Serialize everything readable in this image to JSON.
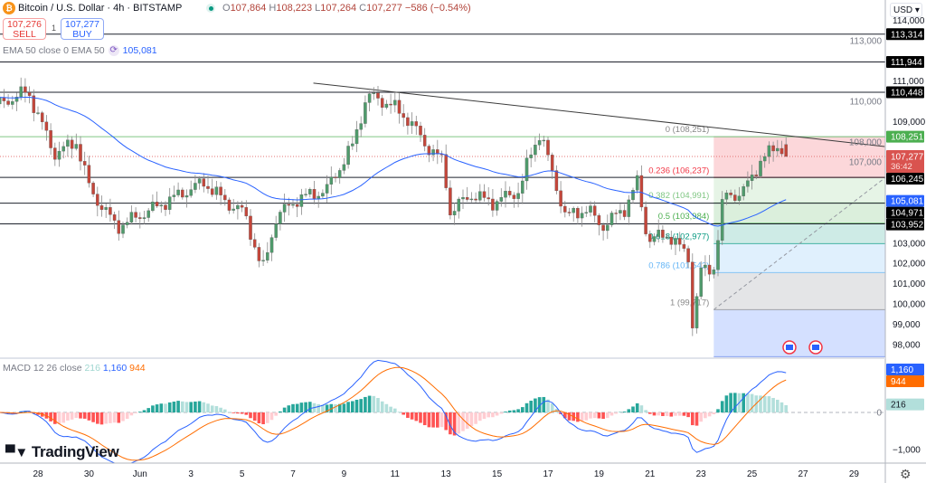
{
  "header": {
    "symbol_title": "Bitcoin / U.S. Dollar · 4h · BITSTAMP",
    "logo_glyph": "₿",
    "ohlc": {
      "o_label": "O",
      "o": "107,864",
      "h_label": "H",
      "h": "108,223",
      "l_label": "L",
      "l": "107,264",
      "c_label": "C",
      "c": "107,277",
      "change": "−586 (−0.54%)"
    },
    "sell": {
      "price": "107,276",
      "label": "SELL"
    },
    "spread": "1",
    "buy": {
      "price": "107,277",
      "label": "BUY"
    },
    "ema_legend": {
      "label": "EMA 50 close 0 EMA 50",
      "value": "105,081"
    },
    "macd_legend": {
      "label": "MACD 12 26 close",
      "hist": "216",
      "macd": "1,160",
      "signal": "944"
    },
    "currency": "USD ▾",
    "watermark": "TradingView"
  },
  "colors": {
    "up": "#4f9b6c",
    "down": "#c4463a",
    "ema": "#2962ff",
    "macd": "#2962ff",
    "signal": "#ff6d00",
    "hist_up": "#26a69a",
    "hist_up_light": "#b2dfdb",
    "hist_dn": "#ff5252",
    "hist_dn_light": "#ffcdd2"
  },
  "chart_data": {
    "type": "candlestick",
    "title": "Bitcoin / U.S. Dollar · 4h · BITSTAMP",
    "interval_hours": 4,
    "x_unit": "days since May 28",
    "start_day": -1.5,
    "end_day": 26.17,
    "price_path": [
      [
        -1.5,
        109870
      ],
      [
        -0.4,
        110500
      ],
      [
        0.65,
        107400
      ],
      [
        1.5,
        108000
      ],
      [
        2.05,
        105600
      ],
      [
        3.1,
        103800
      ],
      [
        4.2,
        104500
      ],
      [
        5.25,
        105200
      ],
      [
        6.5,
        106000
      ],
      [
        7.4,
        105000
      ],
      [
        8.1,
        104500
      ],
      [
        8.8,
        101600
      ],
      [
        9.35,
        104300
      ],
      [
        10.2,
        105200
      ],
      [
        11.3,
        105600
      ],
      [
        12.35,
        107850
      ],
      [
        12.9,
        110300
      ],
      [
        13.8,
        109870
      ],
      [
        14.6,
        109000
      ],
      [
        15.2,
        107850
      ],
      [
        15.9,
        107000
      ],
      [
        16.15,
        104500
      ],
      [
        16.95,
        105400
      ],
      [
        17.85,
        105000
      ],
      [
        18.9,
        105600
      ],
      [
        19.25,
        107200
      ],
      [
        19.7,
        108500
      ],
      [
        20.15,
        106500
      ],
      [
        20.7,
        104300
      ],
      [
        21.55,
        104700
      ],
      [
        22.1,
        103800
      ],
      [
        23.0,
        104700
      ],
      [
        23.5,
        106000
      ],
      [
        23.9,
        103200
      ],
      [
        24.75,
        103400
      ],
      [
        25.5,
        102300
      ],
      [
        25.65,
        98900
      ],
      [
        26.0,
        101600
      ],
      [
        26.5,
        101800
      ],
      [
        26.9,
        105400
      ],
      [
        27.6,
        105400
      ],
      [
        28.3,
        107000
      ],
      [
        29.0,
        107850
      ],
      [
        29.4,
        107277
      ]
    ],
    "last_candle": {
      "open": 107864,
      "high": 108223,
      "low": 107264,
      "close": 107277
    },
    "y_axis": {
      "range": [
        97500,
        114500
      ],
      "ticks": [
        114000,
        113000,
        111000,
        110000,
        109000,
        108000,
        107000,
        103000,
        102000,
        101000,
        100000,
        99000,
        98000
      ]
    },
    "x_axis": {
      "ticks": [
        {
          "day": 0,
          "label": "28"
        },
        {
          "day": 2,
          "label": "30"
        },
        {
          "day": 4,
          "label": "Jun"
        },
        {
          "day": 6,
          "label": "3"
        },
        {
          "day": 8,
          "label": "5"
        },
        {
          "day": 10,
          "label": "7"
        },
        {
          "day": 12,
          "label": "9"
        },
        {
          "day": 14,
          "label": "11"
        },
        {
          "day": 16,
          "label": "13"
        },
        {
          "day": 18,
          "label": "15"
        },
        {
          "day": 20,
          "label": "17"
        },
        {
          "day": 22,
          "label": "19"
        },
        {
          "day": 24,
          "label": "21"
        },
        {
          "day": 26,
          "label": "23"
        },
        {
          "day": 28,
          "label": "25"
        },
        {
          "day": 30,
          "label": "27"
        },
        {
          "day": 32,
          "label": "29"
        }
      ]
    },
    "horizontal_levels": [
      113314,
      111944,
      110448,
      106245,
      104971,
      103952
    ],
    "resistance_level": 108251,
    "current_price": {
      "value": 107277,
      "label": "107,277",
      "countdown": "36:42"
    },
    "price_labels": [
      {
        "value": 113314,
        "text": "113,314",
        "bg": "#000000"
      },
      {
        "value": 111944,
        "text": "111,944",
        "bg": "#000000"
      },
      {
        "value": 110448,
        "text": "110,448",
        "bg": "#000000"
      },
      {
        "value": 108251,
        "text": "108,251",
        "bg": "#4caf50"
      },
      {
        "value": 106245,
        "text": "106,245",
        "bg": "#000000"
      },
      {
        "value": 105081,
        "text": "105,081",
        "bg": "#2962ff"
      },
      {
        "value": 104971,
        "text": "104,971",
        "bg": "#000000"
      },
      {
        "value": 103952,
        "text": "103,952",
        "bg": "#000000"
      }
    ],
    "trendline": {
      "from": [
        10.8,
        110900
      ],
      "to": [
        33.2,
        107770
      ]
    },
    "fibonacci": {
      "start_day": 26.5,
      "high": 108251,
      "low": 99717,
      "levels": [
        {
          "ratio": 0,
          "label": "0 (108,251)",
          "color": "#888888"
        },
        {
          "ratio": 0.236,
          "label": "0.236 (106,237)",
          "color": "#f23645"
        },
        {
          "ratio": 0.382,
          "label": "0.382 (104,991)",
          "color": "#81c784"
        },
        {
          "ratio": 0.5,
          "label": "0.5 (103,984)",
          "color": "#4caf50"
        },
        {
          "ratio": 0.618,
          "label": "0.618 (102,977)",
          "color": "#089981"
        },
        {
          "ratio": 0.786,
          "label": "0.786 (101,543)",
          "color": "#64b5f6"
        },
        {
          "ratio": 1,
          "label": "1 (99,717)",
          "color": "#888888"
        },
        {
          "ratio": 1.272,
          "label": "",
          "color": "#5b7fe8"
        }
      ],
      "zone_fills": [
        "rgba(242,54,69,0.2)",
        "rgba(129,199,132,0.2)",
        "rgba(76,175,80,0.2)",
        "rgba(8,153,129,0.2)",
        "rgba(100,181,246,0.2)",
        "rgba(120,123,134,0.2)",
        "rgba(41,98,255,0.2)"
      ]
    },
    "indicators": {
      "ema": {
        "period": 50,
        "last": 105081
      },
      "macd": {
        "fast": 12,
        "slow": 26,
        "signal": 9,
        "macd_last": 1160,
        "signal_last": 944,
        "hist_last": 216,
        "y_ticks": [
          {
            "value": 0,
            "label": "0"
          },
          {
            "value": -1000,
            "label": "−1,000"
          }
        ]
      }
    },
    "macd_labels": [
      {
        "value": 1160,
        "text": "1,160",
        "bg": "#2962ff"
      },
      {
        "value": 944,
        "text": "944",
        "bg": "#ff6d00"
      },
      {
        "value": 216,
        "text": "216",
        "bg": "#b2dfdb"
      }
    ],
    "event_markers": [
      "us-flag",
      "us-flag"
    ]
  }
}
